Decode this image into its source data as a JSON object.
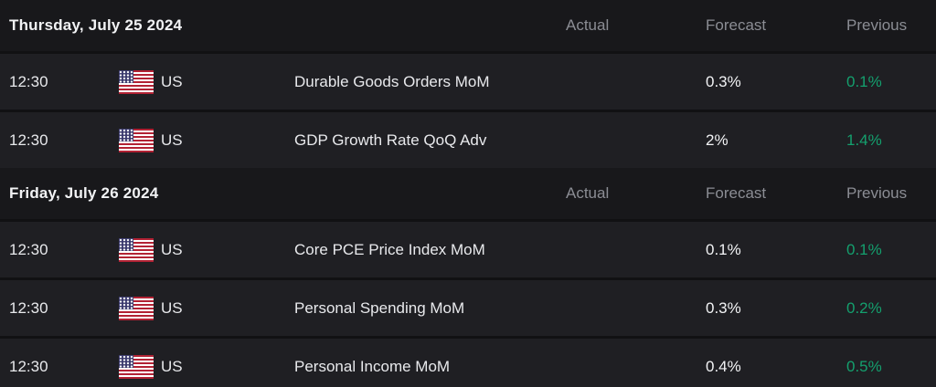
{
  "colors": {
    "background": "#111113",
    "day_header_background": "#18181b",
    "row_background": "#1f1f23",
    "primary_text": "#e8e9ec",
    "muted_text": "#8b8d94",
    "positive_value": "#14a06e",
    "flag_red": "#b22234",
    "flag_blue": "#3c3b6e"
  },
  "columns": {
    "actual": "Actual",
    "forecast": "Forecast",
    "previous": "Previous"
  },
  "sections": [
    {
      "date": "Thursday, July 25 2024",
      "rows": [
        {
          "time": "12:30",
          "country": "US",
          "flag_icon": "us-flag-icon",
          "event": "Durable Goods Orders MoM",
          "actual": "",
          "forecast": "0.3%",
          "previous": "0.1%"
        },
        {
          "time": "12:30",
          "country": "US",
          "flag_icon": "us-flag-icon",
          "event": "GDP Growth Rate QoQ Adv",
          "actual": "",
          "forecast": "2%",
          "previous": "1.4%"
        }
      ]
    },
    {
      "date": "Friday, July 26 2024",
      "rows": [
        {
          "time": "12:30",
          "country": "US",
          "flag_icon": "us-flag-icon",
          "event": "Core PCE Price Index MoM",
          "actual": "",
          "forecast": "0.1%",
          "previous": "0.1%"
        },
        {
          "time": "12:30",
          "country": "US",
          "flag_icon": "us-flag-icon",
          "event": "Personal Spending MoM",
          "actual": "",
          "forecast": "0.3%",
          "previous": "0.2%"
        },
        {
          "time": "12:30",
          "country": "US",
          "flag_icon": "us-flag-icon",
          "event": "Personal Income MoM",
          "actual": "",
          "forecast": "0.4%",
          "previous": "0.5%"
        }
      ]
    }
  ]
}
